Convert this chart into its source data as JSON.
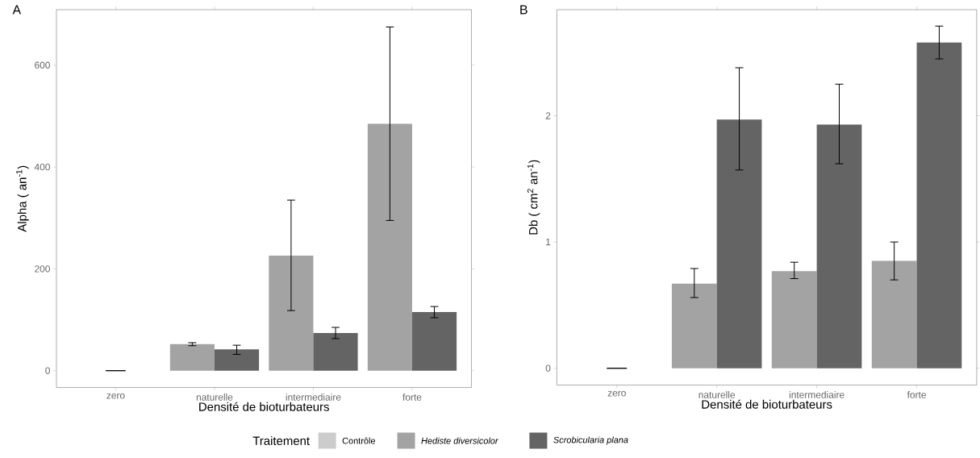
{
  "chart_data": [
    {
      "type": "bar",
      "title": "A",
      "xlabel": "Densité de bioturbateurs",
      "ylabel": "Alpha ( an$^{-1}$)",
      "categories": [
        "zero",
        "naturelle",
        "intermediaire",
        "forte"
      ],
      "series": [
        {
          "name": "Contrôle",
          "color": "#cccccc",
          "values": [
            0,
            null,
            null,
            null
          ],
          "errors": [
            [
              0,
              0
            ],
            null,
            null,
            null
          ]
        },
        {
          "name": "Hediste diversicolor",
          "color": "#a3a3a3",
          "values": [
            null,
            52,
            226,
            485
          ],
          "errors": [
            null,
            [
              49,
              55
            ],
            [
              118,
              335
            ],
            [
              295,
              675
            ]
          ]
        },
        {
          "name": "Scrobicularia plana",
          "color": "#646464",
          "values": [
            null,
            42,
            74,
            115
          ],
          "errors": [
            null,
            [
              32,
              50
            ],
            [
              63,
              85
            ],
            [
              104,
              126
            ]
          ]
        }
      ],
      "ylim": [
        -33,
        709
      ],
      "yticks": [
        0,
        200,
        400,
        600
      ],
      "legend": "bottom",
      "legend_title": "Traitement"
    },
    {
      "type": "bar",
      "title": "B",
      "xlabel": "Densité de bioturbateurs",
      "ylabel": "Db ( cm$^{2}$ an$^{-1}$)",
      "categories": [
        "zero",
        "naturelle",
        "intermediaire",
        "forte"
      ],
      "series": [
        {
          "color": "#cccccc",
          "values": [
            0,
            null,
            null,
            null
          ],
          "errors": [
            [
              0,
              0
            ],
            null,
            null,
            null
          ]
        },
        {
          "color": "#a3a3a3",
          "values": [
            null,
            0.67,
            0.77,
            0.85
          ],
          "errors": [
            null,
            [
              0.56,
              0.79
            ],
            [
              0.71,
              0.84
            ],
            [
              0.7,
              1.0
            ]
          ]
        },
        {
          "color": "#646464",
          "values": [
            null,
            1.97,
            1.93,
            2.58
          ],
          "errors": [
            null,
            [
              1.57,
              2.38
            ],
            [
              1.62,
              2.25
            ],
            [
              2.45,
              2.71
            ]
          ]
        }
      ],
      "ylim": [
        -0.133,
        2.84
      ],
      "yticks": [
        0,
        1,
        2
      ]
    }
  ]
}
